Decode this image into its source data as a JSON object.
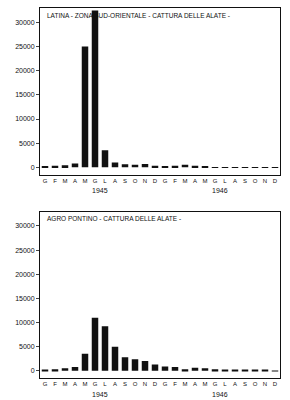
{
  "chart_data": [
    {
      "type": "bar",
      "title": "LATINA - ZONA SUD-ORIENTALE - CATTURA DELLE ALATE -",
      "categories": [
        "G",
        "F",
        "M",
        "A",
        "M",
        "G",
        "L",
        "A",
        "S",
        "O",
        "N",
        "D",
        "G",
        "F",
        "M",
        "A",
        "M",
        "G",
        "L",
        "A",
        "S",
        "O",
        "N",
        "D"
      ],
      "values": [
        100,
        300,
        400,
        800,
        25000,
        32500,
        3500,
        1000,
        600,
        500,
        700,
        300,
        200,
        300,
        500,
        300,
        100,
        50,
        50,
        50,
        50,
        50,
        50,
        50
      ],
      "color": "#111111",
      "ylim": [
        -1500,
        33000
      ],
      "yticks": [
        0,
        5000,
        10000,
        15000,
        20000,
        25000,
        30000
      ],
      "grid": false,
      "annotations": [
        {
          "text": "1945"
        },
        {
          "text": "1946"
        }
      ]
    },
    {
      "type": "bar",
      "title": "AGRO PONTINO - CATTURA DELLE ALATE -",
      "categories": [
        "G",
        "F",
        "M",
        "A",
        "M",
        "G",
        "L",
        "A",
        "S",
        "O",
        "N",
        "D",
        "G",
        "F",
        "M",
        "A",
        "M",
        "G",
        "L",
        "A",
        "S",
        "O",
        "N",
        "D"
      ],
      "values": [
        100,
        300,
        500,
        800,
        3500,
        11000,
        9200,
        5000,
        2800,
        2400,
        2000,
        1300,
        900,
        800,
        300,
        600,
        500,
        300,
        200,
        200,
        200,
        100,
        100,
        50
      ],
      "color": "#111111",
      "ylim": [
        -1500,
        33000
      ],
      "yticks": [
        0,
        5000,
        10000,
        15000,
        20000,
        25000,
        30000
      ],
      "grid": false,
      "annotations": [
        {
          "text": "1945"
        },
        {
          "text": "1946"
        }
      ]
    }
  ]
}
